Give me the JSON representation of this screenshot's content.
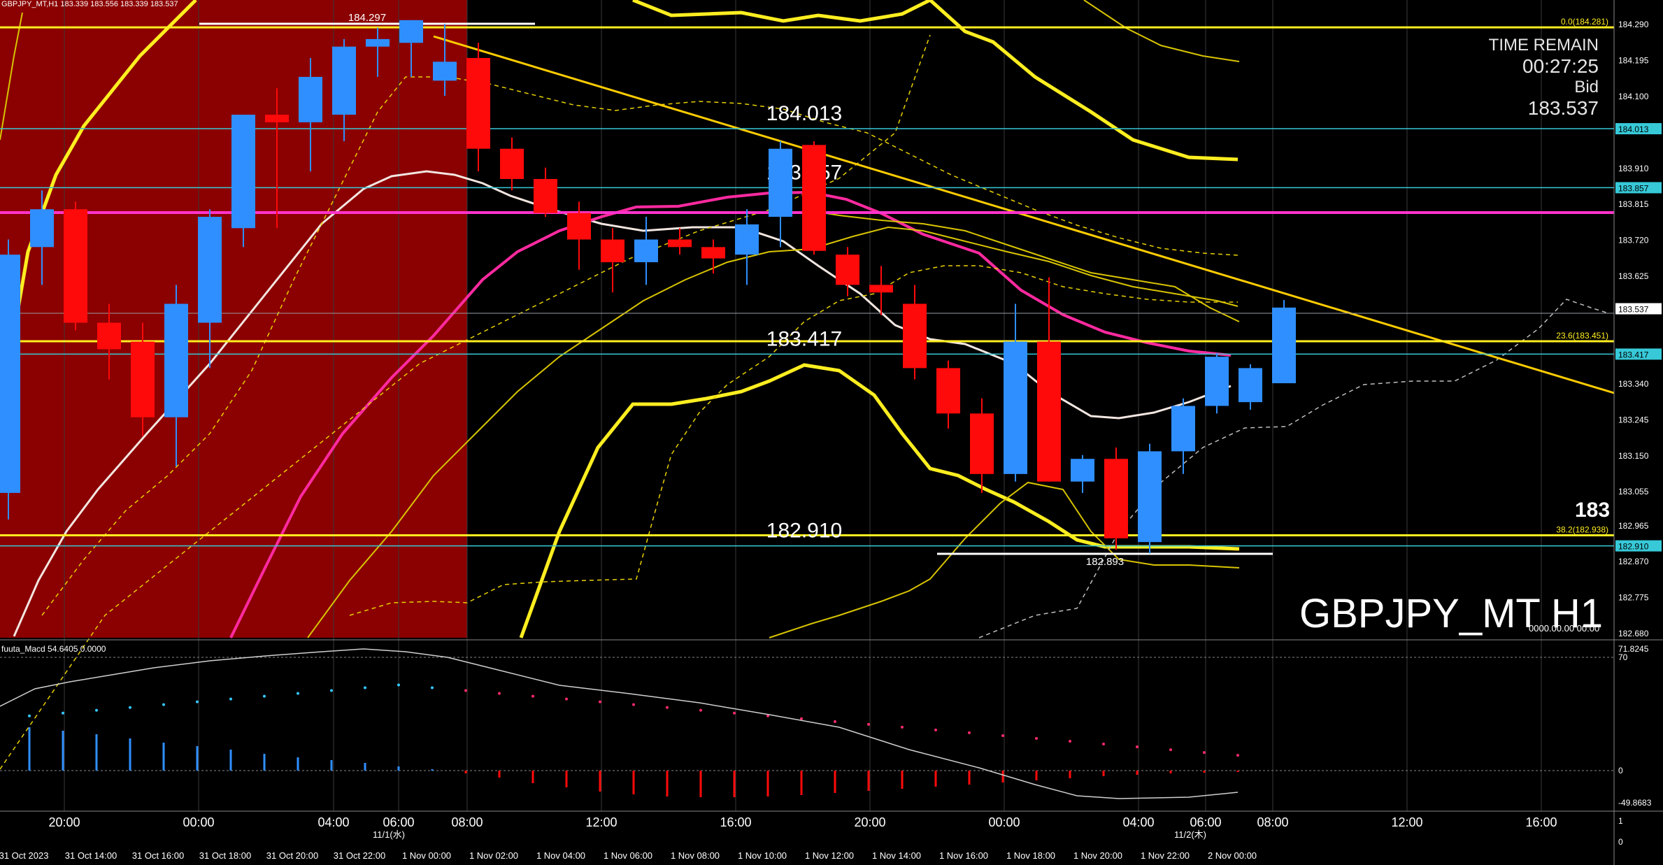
{
  "header": {
    "symbol_info": "GBPJPY_MT,H1  183.339 183.556 183.339 183.537",
    "time_remain_label": "TIME REMAIN",
    "time_remain_value": "00:27:25",
    "bid_label": "Bid",
    "bid_value": "183.537"
  },
  "watermark": "GBPJPY_MT H1",
  "clock_text": "0000.00.00 00:00",
  "partial_price": "183",
  "horizontal_levels": [
    {
      "label": "184.013",
      "price": 184.013,
      "color": "#37c9d8"
    },
    {
      "label": "183.857",
      "price": 183.857,
      "color": "#37c9d8"
    },
    {
      "label": "183.417",
      "price": 183.417,
      "color": "#37c9d8"
    },
    {
      "label": "182.910",
      "price": 182.91,
      "color": "#37c9d8"
    }
  ],
  "fib_levels": [
    {
      "label": "0.0(184.281)",
      "price": 184.281
    },
    {
      "label": "23.6(183.451)",
      "price": 183.451
    },
    {
      "label": "38.2(182.938)",
      "price": 182.938
    }
  ],
  "high_marker": "184.297",
  "low_marker": "182.893",
  "price_axis": [
    "184.290",
    "184.195",
    "184.100",
    "184.013",
    "183.910",
    "183.857",
    "183.815",
    "183.720",
    "183.625",
    "183.537",
    "183.417",
    "183.340",
    "183.245",
    "183.150",
    "183.055",
    "182.965",
    "182.910",
    "182.870",
    "182.775",
    "182.680"
  ],
  "price_axis_highlight": {
    "184.013": "#37c9d8",
    "183.857": "#37c9d8",
    "183.537": "#ffffff",
    "183.417": "#37c9d8",
    "182.910": "#37c9d8"
  },
  "macd": {
    "label": "fuuta_Macd 54.6405  0.0000",
    "axis": [
      "71.8245",
      "70",
      "0",
      "-49.8683"
    ]
  },
  "time_axis_top": [
    "20:00",
    "00:00",
    "04:00",
    "06:00",
    "08:00",
    "12:00",
    "16:00",
    "20:00",
    "00:00",
    "04:00",
    "06:00",
    "08:00",
    "12:00",
    "16:00"
  ],
  "time_axis_sub": [
    "11/1(水)",
    "11/2(木)"
  ],
  "time_axis_bottom": [
    "31 Oct 2023",
    "31 Oct 14:00",
    "31 Oct 16:00",
    "31 Oct 18:00",
    "31 Oct 20:00",
    "31 Oct 22:00",
    "1 Nov 00:00",
    "1 Nov 02:00",
    "1 Nov 04:00",
    "1 Nov 06:00",
    "1 Nov 08:00",
    "1 Nov 10:00",
    "1 Nov 12:00",
    "1 Nov 14:00",
    "1 Nov 16:00",
    "1 Nov 18:00",
    "1 Nov 20:00",
    "1 Nov 22:00",
    "2 Nov 00:00"
  ],
  "right_axis_bottom": [
    "1",
    "0"
  ],
  "chart_data": {
    "type": "candlestick",
    "symbol": "GBPJPY_MT",
    "timeframe": "H1",
    "ylim": [
      182.68,
      184.32
    ],
    "candles": [
      {
        "o": 183.05,
        "h": 183.72,
        "l": 182.98,
        "c": 183.68
      },
      {
        "o": 183.7,
        "h": 183.85,
        "l": 183.6,
        "c": 183.8
      },
      {
        "o": 183.8,
        "h": 183.82,
        "l": 183.48,
        "c": 183.5
      },
      {
        "o": 183.5,
        "h": 183.55,
        "l": 183.35,
        "c": 183.43
      },
      {
        "o": 183.45,
        "h": 183.5,
        "l": 183.2,
        "c": 183.25
      },
      {
        "o": 183.25,
        "h": 183.6,
        "l": 183.12,
        "c": 183.55
      },
      {
        "o": 183.5,
        "h": 183.8,
        "l": 183.38,
        "c": 183.78
      },
      {
        "o": 183.75,
        "h": 184.05,
        "l": 183.7,
        "c": 184.05
      },
      {
        "o": 184.05,
        "h": 184.12,
        "l": 183.75,
        "c": 184.03
      },
      {
        "o": 184.03,
        "h": 184.2,
        "l": 183.9,
        "c": 184.15
      },
      {
        "o": 184.05,
        "h": 184.25,
        "l": 183.98,
        "c": 184.23
      },
      {
        "o": 184.23,
        "h": 184.28,
        "l": 184.15,
        "c": 184.25
      },
      {
        "o": 184.24,
        "h": 184.3,
        "l": 184.15,
        "c": 184.3
      },
      {
        "o": 184.14,
        "h": 184.29,
        "l": 184.1,
        "c": 184.19
      },
      {
        "o": 184.2,
        "h": 184.24,
        "l": 183.9,
        "c": 183.96
      },
      {
        "o": 183.96,
        "h": 183.99,
        "l": 183.85,
        "c": 183.88
      },
      {
        "o": 183.88,
        "h": 183.91,
        "l": 183.78,
        "c": 183.79
      },
      {
        "o": 183.79,
        "h": 183.82,
        "l": 183.64,
        "c": 183.72
      },
      {
        "o": 183.72,
        "h": 183.75,
        "l": 183.58,
        "c": 183.66
      },
      {
        "o": 183.66,
        "h": 183.78,
        "l": 183.6,
        "c": 183.72
      },
      {
        "o": 183.72,
        "h": 183.75,
        "l": 183.68,
        "c": 183.7
      },
      {
        "o": 183.7,
        "h": 183.72,
        "l": 183.63,
        "c": 183.67
      },
      {
        "o": 183.68,
        "h": 183.8,
        "l": 183.6,
        "c": 183.76
      },
      {
        "o": 183.78,
        "h": 183.98,
        "l": 183.7,
        "c": 183.96
      },
      {
        "o": 183.97,
        "h": 183.98,
        "l": 183.68,
        "c": 183.69
      },
      {
        "o": 183.68,
        "h": 183.7,
        "l": 183.57,
        "c": 183.6
      },
      {
        "o": 183.6,
        "h": 183.65,
        "l": 183.52,
        "c": 183.58
      },
      {
        "o": 183.55,
        "h": 183.6,
        "l": 183.35,
        "c": 183.38
      },
      {
        "o": 183.38,
        "h": 183.4,
        "l": 183.22,
        "c": 183.26
      },
      {
        "o": 183.26,
        "h": 183.3,
        "l": 183.05,
        "c": 183.1
      },
      {
        "o": 183.1,
        "h": 183.55,
        "l": 183.08,
        "c": 183.45
      },
      {
        "o": 183.45,
        "h": 183.62,
        "l": 183.08,
        "c": 183.08
      },
      {
        "o": 183.08,
        "h": 183.15,
        "l": 183.05,
        "c": 183.14
      },
      {
        "o": 183.14,
        "h": 183.17,
        "l": 182.9,
        "c": 182.93
      },
      {
        "o": 182.92,
        "h": 183.18,
        "l": 182.89,
        "c": 183.16
      },
      {
        "o": 183.16,
        "h": 183.3,
        "l": 183.1,
        "c": 183.28
      },
      {
        "o": 183.28,
        "h": 183.42,
        "l": 183.26,
        "c": 183.41
      },
      {
        "o": 183.29,
        "h": 183.39,
        "l": 183.27,
        "c": 183.38
      },
      {
        "o": 183.34,
        "h": 183.56,
        "l": 183.34,
        "c": 183.54
      }
    ]
  }
}
